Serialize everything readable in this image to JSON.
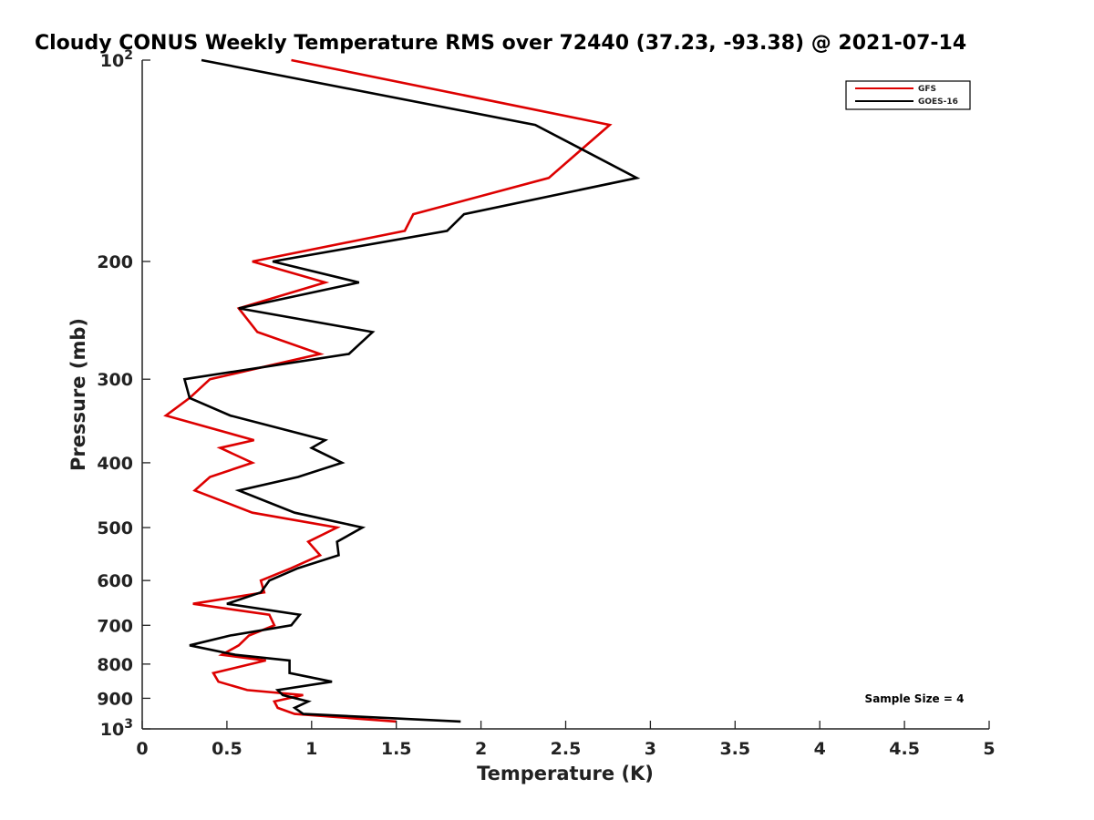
{
  "chart_data": {
    "type": "line",
    "title": "Cloudy CONUS Weekly Temperature RMS over 72440 (37.23, -93.38) @ 2021-07-14",
    "xlabel": "Temperature (K)",
    "ylabel": "Pressure (mb)",
    "xlim": [
      0,
      5
    ],
    "ylim": [
      100,
      1000
    ],
    "y_scale": "log",
    "y_direction": "reversed",
    "x_ticks": [
      "0",
      "0.5",
      "1",
      "1.5",
      "2",
      "2.5",
      "3",
      "3.5",
      "4",
      "4.5",
      "5"
    ],
    "y_ticks": [
      {
        "value": 100,
        "base": "10",
        "exp": "2"
      },
      {
        "value": 200,
        "label": "200"
      },
      {
        "value": 300,
        "label": "300"
      },
      {
        "value": 400,
        "label": "400"
      },
      {
        "value": 500,
        "label": "500"
      },
      {
        "value": 600,
        "label": "600"
      },
      {
        "value": 700,
        "label": "700"
      },
      {
        "value": 800,
        "label": "800"
      },
      {
        "value": 900,
        "label": "900"
      },
      {
        "value": 1000,
        "base": "10",
        "exp": "3"
      }
    ],
    "grid": false,
    "legend_position": "top-right",
    "annotation": "Sample Size = 4",
    "series": [
      {
        "name": "GFS",
        "color": "#dd0000",
        "points": [
          [
            0.88,
            100
          ],
          [
            2.76,
            125
          ],
          [
            2.4,
            150
          ],
          [
            1.6,
            170
          ],
          [
            1.55,
            180
          ],
          [
            0.65,
            200
          ],
          [
            1.08,
            215
          ],
          [
            0.57,
            235
          ],
          [
            0.68,
            255
          ],
          [
            1.05,
            275
          ],
          [
            0.4,
            300
          ],
          [
            0.28,
            320
          ],
          [
            0.14,
            340
          ],
          [
            0.66,
            370
          ],
          [
            0.46,
            380
          ],
          [
            0.65,
            400
          ],
          [
            0.4,
            420
          ],
          [
            0.31,
            440
          ],
          [
            0.65,
            475
          ],
          [
            1.15,
            500
          ],
          [
            0.98,
            525
          ],
          [
            1.05,
            550
          ],
          [
            0.88,
            575
          ],
          [
            0.7,
            600
          ],
          [
            0.72,
            625
          ],
          [
            0.3,
            650
          ],
          [
            0.75,
            675
          ],
          [
            0.78,
            700
          ],
          [
            0.63,
            725
          ],
          [
            0.57,
            750
          ],
          [
            0.47,
            775
          ],
          [
            0.73,
            790
          ],
          [
            0.42,
            825
          ],
          [
            0.45,
            850
          ],
          [
            0.62,
            875
          ],
          [
            0.95,
            890
          ],
          [
            0.78,
            910
          ],
          [
            0.8,
            930
          ],
          [
            0.9,
            950
          ],
          [
            1.5,
            975
          ]
        ]
      },
      {
        "name": "GOES-16",
        "color": "#000000",
        "points": [
          [
            0.35,
            100
          ],
          [
            2.32,
            125
          ],
          [
            2.92,
            150
          ],
          [
            1.9,
            170
          ],
          [
            1.8,
            180
          ],
          [
            0.77,
            200
          ],
          [
            1.28,
            215
          ],
          [
            0.57,
            235
          ],
          [
            1.36,
            255
          ],
          [
            1.22,
            275
          ],
          [
            0.25,
            300
          ],
          [
            0.28,
            320
          ],
          [
            0.52,
            340
          ],
          [
            1.08,
            370
          ],
          [
            1.0,
            380
          ],
          [
            1.18,
            400
          ],
          [
            0.92,
            420
          ],
          [
            0.57,
            440
          ],
          [
            0.9,
            475
          ],
          [
            1.3,
            500
          ],
          [
            1.15,
            525
          ],
          [
            1.16,
            550
          ],
          [
            0.92,
            575
          ],
          [
            0.75,
            600
          ],
          [
            0.7,
            625
          ],
          [
            0.5,
            650
          ],
          [
            0.93,
            675
          ],
          [
            0.88,
            700
          ],
          [
            0.52,
            725
          ],
          [
            0.28,
            750
          ],
          [
            0.55,
            775
          ],
          [
            0.87,
            790
          ],
          [
            0.87,
            825
          ],
          [
            1.12,
            850
          ],
          [
            0.8,
            875
          ],
          [
            0.83,
            890
          ],
          [
            0.98,
            910
          ],
          [
            0.9,
            930
          ],
          [
            0.95,
            950
          ],
          [
            1.88,
            975
          ]
        ]
      }
    ]
  }
}
